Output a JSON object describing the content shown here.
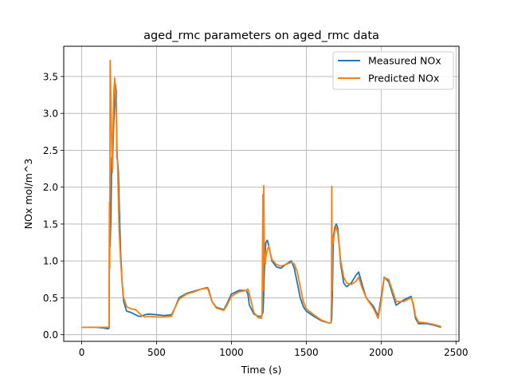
{
  "chart_data": {
    "type": "line",
    "title": "aged_rmc parameters on aged_rmc data",
    "xlabel": "Time (s)",
    "ylabel": "NOx mol/m^3",
    "xlim": [
      -120,
      2520
    ],
    "ylim": [
      -0.09,
      3.91
    ],
    "xticks": [
      0,
      500,
      1000,
      1500,
      2000,
      2500
    ],
    "yticks": [
      0.0,
      0.5,
      1.0,
      1.5,
      2.0,
      2.5,
      3.0,
      3.5
    ],
    "grid": true,
    "legend_position": "top-right",
    "series": [
      {
        "name": "Measured NOx",
        "color": "#1f77b4",
        "x": [
          0,
          50,
          100,
          150,
          175,
          183,
          186,
          190,
          195,
          200,
          205,
          210,
          215,
          220,
          225,
          230,
          235,
          240,
          245,
          250,
          260,
          270,
          280,
          300,
          330,
          360,
          380,
          400,
          420,
          450,
          500,
          550,
          600,
          620,
          650,
          700,
          750,
          800,
          840,
          850,
          870,
          900,
          950,
          970,
          1000,
          1050,
          1100,
          1110,
          1120,
          1150,
          1180,
          1200,
          1210,
          1215,
          1220,
          1225,
          1230,
          1240,
          1250,
          1260,
          1270,
          1300,
          1330,
          1360,
          1400,
          1420,
          1440,
          1460,
          1480,
          1500,
          1550,
          1600,
          1650,
          1665,
          1670,
          1675,
          1680,
          1690,
          1700,
          1710,
          1720,
          1730,
          1750,
          1770,
          1800,
          1830,
          1850,
          1870,
          1900,
          1950,
          1980,
          2000,
          2020,
          2050,
          2100,
          2150,
          2200,
          2215,
          2230,
          2250,
          2300,
          2350,
          2400
        ],
        "y": [
          0.1,
          0.1,
          0.1,
          0.09,
          0.08,
          0.09,
          1.7,
          1.2,
          1.6,
          2.4,
          2.2,
          2.6,
          2.9,
          3.1,
          3.4,
          3.3,
          2.4,
          2.35,
          2.2,
          1.8,
          1.1,
          0.7,
          0.45,
          0.32,
          0.3,
          0.27,
          0.25,
          0.25,
          0.27,
          0.28,
          0.27,
          0.26,
          0.27,
          0.35,
          0.5,
          0.56,
          0.59,
          0.62,
          0.64,
          0.6,
          0.45,
          0.37,
          0.34,
          0.42,
          0.55,
          0.6,
          0.6,
          0.55,
          0.4,
          0.28,
          0.25,
          0.25,
          0.3,
          0.5,
          0.9,
          1.1,
          1.25,
          1.28,
          1.2,
          1.1,
          1.0,
          0.92,
          0.9,
          0.95,
          1.0,
          0.9,
          0.7,
          0.5,
          0.38,
          0.32,
          0.25,
          0.19,
          0.16,
          0.16,
          0.22,
          0.6,
          1.3,
          1.45,
          1.5,
          1.45,
          1.2,
          0.95,
          0.7,
          0.65,
          0.7,
          0.8,
          0.85,
          0.7,
          0.5,
          0.38,
          0.25,
          0.5,
          0.78,
          0.72,
          0.4,
          0.47,
          0.52,
          0.4,
          0.22,
          0.15,
          0.15,
          0.13,
          0.1
        ]
      },
      {
        "name": "Predicted NOx",
        "color": "#ff7f0e",
        "x": [
          0,
          50,
          100,
          150,
          175,
          183,
          185,
          187,
          190,
          195,
          200,
          205,
          210,
          215,
          220,
          225,
          230,
          235,
          240,
          245,
          250,
          260,
          270,
          280,
          300,
          330,
          360,
          380,
          400,
          420,
          450,
          500,
          550,
          600,
          620,
          650,
          700,
          750,
          800,
          840,
          850,
          870,
          900,
          950,
          970,
          1000,
          1050,
          1100,
          1110,
          1120,
          1150,
          1180,
          1200,
          1205,
          1210,
          1213,
          1216,
          1220,
          1223,
          1226,
          1230,
          1240,
          1250,
          1260,
          1270,
          1300,
          1330,
          1360,
          1400,
          1420,
          1440,
          1460,
          1480,
          1500,
          1550,
          1600,
          1650,
          1665,
          1668,
          1670,
          1672,
          1675,
          1680,
          1690,
          1700,
          1710,
          1720,
          1730,
          1750,
          1770,
          1800,
          1830,
          1850,
          1870,
          1900,
          1950,
          1980,
          2000,
          2020,
          2050,
          2100,
          2150,
          2200,
          2215,
          2230,
          2250,
          2300,
          2350,
          2400
        ],
        "y": [
          0.1,
          0.1,
          0.1,
          0.1,
          0.1,
          0.1,
          1.8,
          0.9,
          3.72,
          3.2,
          2.6,
          2.2,
          2.9,
          3.3,
          3.48,
          3.3,
          3.1,
          2.6,
          2.3,
          1.8,
          1.4,
          1.0,
          0.7,
          0.5,
          0.38,
          0.35,
          0.34,
          0.3,
          0.26,
          0.24,
          0.25,
          0.24,
          0.24,
          0.25,
          0.35,
          0.48,
          0.55,
          0.58,
          0.62,
          0.63,
          0.58,
          0.45,
          0.36,
          0.33,
          0.4,
          0.52,
          0.58,
          0.6,
          0.62,
          0.55,
          0.3,
          0.23,
          0.22,
          0.3,
          1.9,
          0.6,
          2.02,
          1.0,
          1.1,
          0.95,
          1.05,
          1.15,
          1.2,
          1.1,
          1.02,
          0.95,
          0.93,
          0.95,
          0.98,
          0.96,
          0.85,
          0.65,
          0.45,
          0.35,
          0.27,
          0.2,
          0.16,
          0.16,
          0.5,
          2.01,
          0.6,
          1.35,
          1.25,
          1.4,
          1.47,
          1.38,
          1.2,
          1.0,
          0.78,
          0.7,
          0.68,
          0.72,
          0.78,
          0.65,
          0.5,
          0.35,
          0.22,
          0.45,
          0.77,
          0.75,
          0.45,
          0.45,
          0.5,
          0.42,
          0.25,
          0.17,
          0.16,
          0.14,
          0.11
        ]
      }
    ]
  }
}
